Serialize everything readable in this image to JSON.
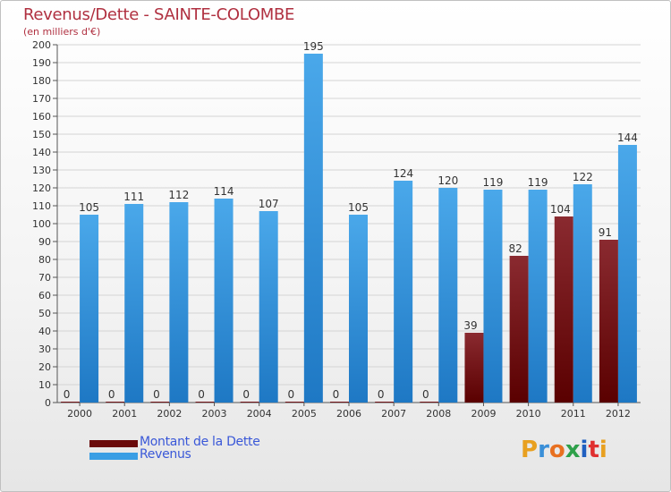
{
  "header": {
    "title": "Revenus/Dette - SAINTE-COLOMBE",
    "subtitle": "(en milliers d'€)"
  },
  "legend": {
    "items": [
      {
        "label": "Montant de la Dette",
        "color": "#7a1010"
      },
      {
        "label": "Revenus",
        "color": "#3a9ee4"
      }
    ]
  },
  "logo": {
    "text": "Proxiti",
    "colors": [
      "#e8a020",
      "#3a8fd8",
      "#e87020",
      "#2ea04a",
      "#2060c0",
      "#e03030",
      "#e8a020"
    ]
  },
  "chart_data": {
    "type": "bar",
    "title": "Revenus/Dette - SAINTE-COLOMBE",
    "ylabel": "(en milliers d'€)",
    "xlabel": "",
    "ylim": [
      0,
      200
    ],
    "ytick_step": 10,
    "categories": [
      "2000",
      "2001",
      "2002",
      "2003",
      "2004",
      "2005",
      "2006",
      "2007",
      "2008",
      "2009",
      "2010",
      "2011",
      "2012"
    ],
    "series": [
      {
        "name": "Montant de la Dette",
        "color": "#7a1010",
        "values": [
          0,
          0,
          0,
          0,
          0,
          0,
          0,
          0,
          0,
          39,
          82,
          104,
          91
        ]
      },
      {
        "name": "Revenus",
        "color": "#3a9ee4",
        "values": [
          105,
          111,
          112,
          114,
          107,
          195,
          105,
          124,
          120,
          119,
          119,
          122,
          144
        ]
      }
    ]
  }
}
